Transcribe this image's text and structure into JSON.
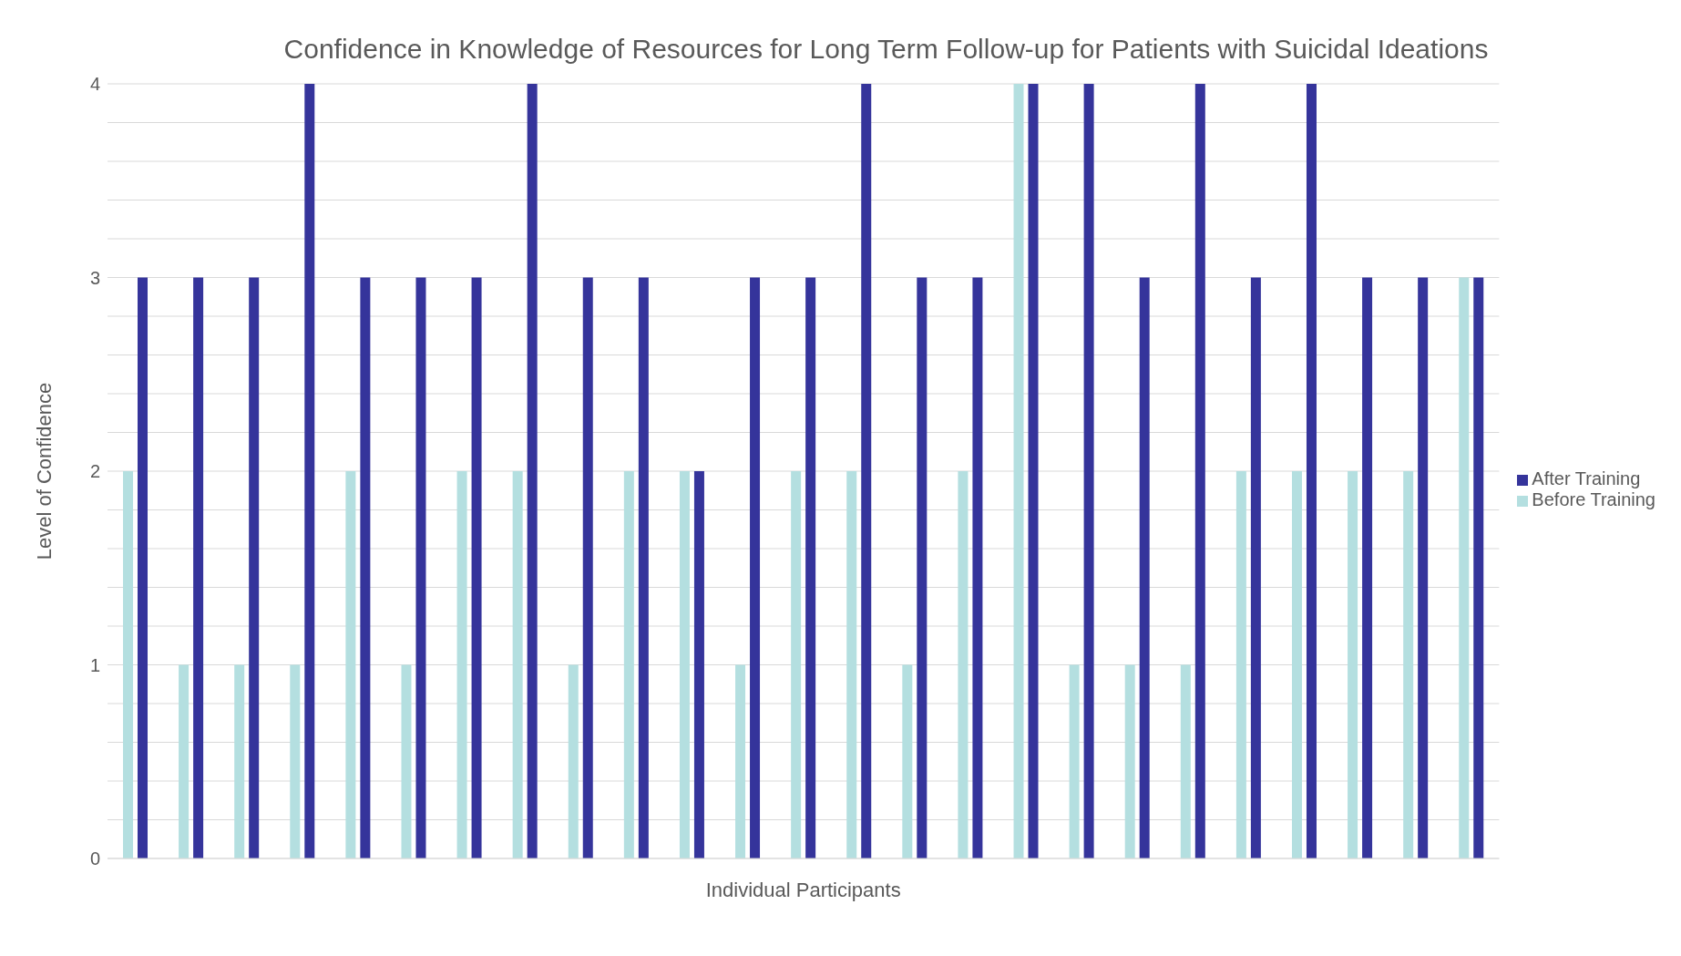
{
  "chart_data": {
    "type": "bar",
    "title": "Confidence in Knowledge of Resources for Long Term Follow-up for Patients with Suicidal Ideations",
    "xlabel": "Individual Participants",
    "ylabel": "Level of Confidence",
    "categories": [
      null,
      null,
      null,
      null,
      null,
      null,
      null,
      null,
      null,
      null,
      null,
      null,
      null,
      null,
      null,
      null,
      null,
      null,
      null,
      null,
      null,
      null,
      null,
      null,
      null
    ],
    "series": [
      {
        "name": "Before Training",
        "color": "#b4dfe0",
        "values": [
          2,
          1,
          1,
          1,
          2,
          1,
          2,
          2,
          1,
          2,
          2,
          1,
          2,
          2,
          1,
          2,
          4,
          1,
          1,
          1,
          2,
          2,
          2,
          2,
          3
        ]
      },
      {
        "name": "After Training",
        "color": "#35349b",
        "values": [
          3,
          3,
          3,
          4,
          3,
          3,
          3,
          4,
          3,
          3,
          2,
          3,
          3,
          4,
          3,
          3,
          4,
          4,
          3,
          4,
          3,
          4,
          3,
          3,
          3
        ]
      }
    ],
    "ylim": [
      0,
      4
    ],
    "yticks": [
      0,
      {
        "value": 0.2,
        "label": null
      },
      {
        "value": 0.4,
        "label": null
      },
      {
        "value": 0.6,
        "label": null
      },
      {
        "value": 0.8,
        "label": null
      },
      1,
      {
        "value": 1.2,
        "label": null
      },
      {
        "value": 1.4,
        "label": null
      },
      {
        "value": 1.6,
        "label": null
      },
      {
        "value": 1.8,
        "label": null
      },
      2,
      {
        "value": 2.2,
        "label": null
      },
      {
        "value": 2.4,
        "label": null
      },
      {
        "value": 2.6,
        "label": null
      },
      {
        "value": 2.8,
        "label": null
      },
      3,
      {
        "value": 3.2,
        "label": null
      },
      {
        "value": 3.4,
        "label": null
      },
      {
        "value": 3.6,
        "label": null
      },
      {
        "value": 3.8,
        "label": null
      },
      4
    ],
    "grid": "y",
    "legend": "right"
  }
}
